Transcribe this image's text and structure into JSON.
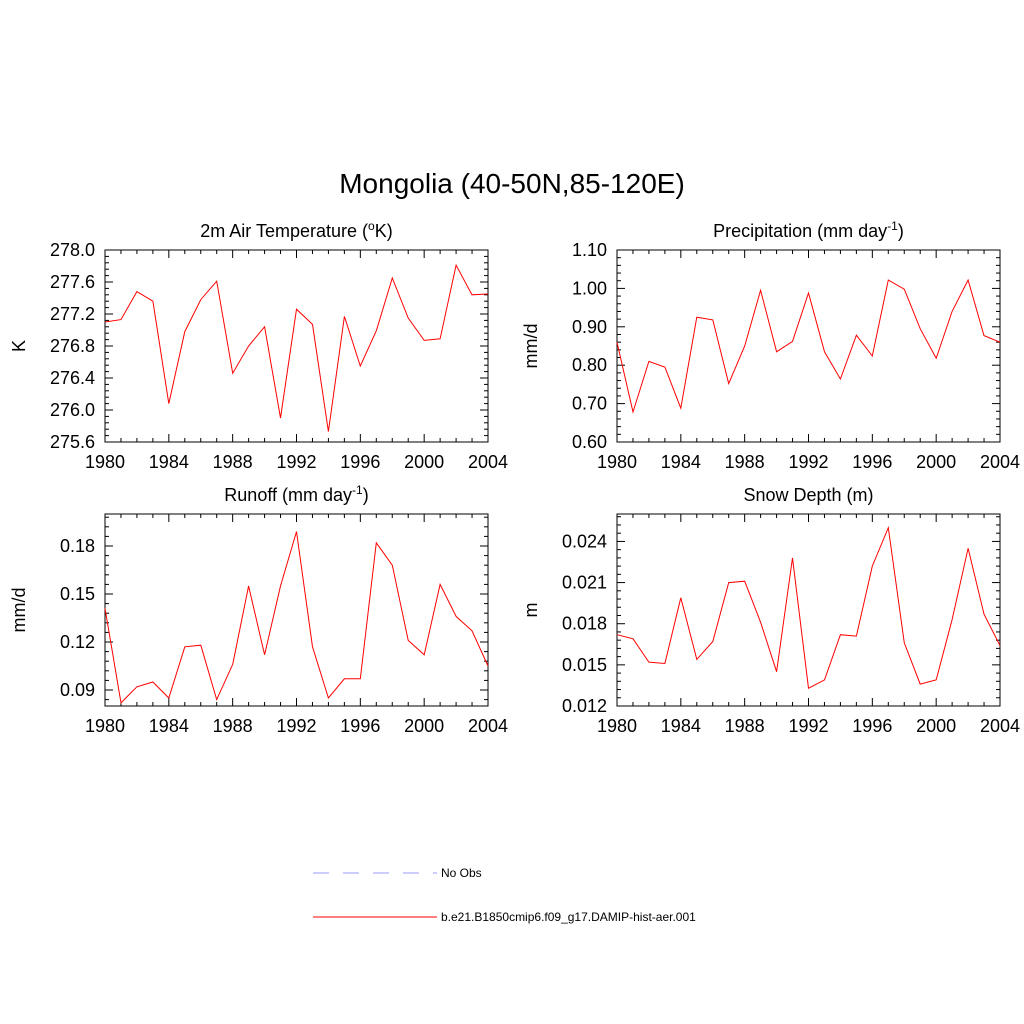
{
  "title": "Mongolia (40-50N,85-120E)",
  "legend": [
    {
      "label": "No Obs",
      "color": "#9999ff",
      "dash": true
    },
    {
      "label": "b.e21.B1850cmip6.f09_g17.DAMIP-hist-aer.001",
      "color": "#ff0000",
      "dash": false
    }
  ],
  "chart_data": [
    {
      "type": "line",
      "title_main": "2m Air Temperature (",
      "title_sup": "o",
      "title_tail": "K)",
      "title_sup_before": true,
      "ylabel": "K",
      "xlim": [
        1980,
        2004
      ],
      "ylim": [
        275.6,
        278.0
      ],
      "xticks": [
        "1980",
        "1984",
        "1988",
        "1992",
        "1996",
        "2000",
        "2004"
      ],
      "yticks": [
        "275.6",
        "276.0",
        "276.4",
        "276.8",
        "277.2",
        "277.6",
        "278.0"
      ],
      "x": [
        1980,
        1981,
        1982,
        1983,
        1984,
        1985,
        1986,
        1987,
        1988,
        1989,
        1990,
        1991,
        1992,
        1993,
        1994,
        1995,
        1996,
        1997,
        1998,
        1999,
        2000,
        2001,
        2002,
        2003,
        2004
      ],
      "series": [
        {
          "name": "b.e21.B1850cmip6.f09_g17.DAMIP-hist-aer.001",
          "color": "#ff0000",
          "values": [
            277.1,
            277.13,
            277.48,
            277.36,
            276.08,
            276.98,
            277.38,
            277.61,
            276.46,
            276.8,
            277.04,
            275.9,
            277.26,
            277.07,
            275.73,
            277.17,
            276.55,
            276.99,
            277.65,
            277.15,
            276.87,
            276.89,
            277.81,
            277.44,
            277.45
          ]
        }
      ]
    },
    {
      "type": "line",
      "title_main": "Precipitation (mm day",
      "title_sup": "-1",
      "title_tail": ")",
      "title_sup_before": false,
      "ylabel": "mm/d",
      "xlim": [
        1980,
        2004
      ],
      "ylim": [
        0.6,
        1.1
      ],
      "xticks": [
        "1980",
        "1984",
        "1988",
        "1992",
        "1996",
        "2000",
        "2004"
      ],
      "yticks": [
        "0.60",
        "0.70",
        "0.80",
        "0.90",
        "1.00",
        "1.10"
      ],
      "x": [
        1980,
        1981,
        1982,
        1983,
        1984,
        1985,
        1986,
        1987,
        1988,
        1989,
        1990,
        1991,
        1992,
        1993,
        1994,
        1995,
        1996,
        1997,
        1998,
        1999,
        2000,
        2001,
        2002,
        2003,
        2004
      ],
      "series": [
        {
          "name": "b.e21.B1850cmip6.f09_g17.DAMIP-hist-aer.001",
          "color": "#ff0000",
          "values": [
            0.86,
            0.678,
            0.81,
            0.795,
            0.688,
            0.925,
            0.918,
            0.752,
            0.85,
            0.995,
            0.835,
            0.862,
            0.988,
            0.835,
            0.764,
            0.878,
            0.824,
            1.022,
            0.998,
            0.895,
            0.818,
            0.94,
            1.022,
            0.877,
            0.86
          ]
        }
      ]
    },
    {
      "type": "line",
      "title_main": "Runoff (mm day",
      "title_sup": "-1",
      "title_tail": ")",
      "title_sup_before": false,
      "ylabel": "mm/d",
      "xlim": [
        1980,
        2004
      ],
      "ylim": [
        0.08,
        0.2
      ],
      "xticks": [
        "1980",
        "1984",
        "1988",
        "1992",
        "1996",
        "2000",
        "2004"
      ],
      "ytick_values": [
        0.09,
        0.12,
        0.15,
        0.18
      ],
      "yticks": [
        "0.09",
        "0.12",
        "0.15",
        "0.18"
      ],
      "x": [
        1980,
        1981,
        1982,
        1983,
        1984,
        1985,
        1986,
        1987,
        1988,
        1989,
        1990,
        1991,
        1992,
        1993,
        1994,
        1995,
        1996,
        1997,
        1998,
        1999,
        2000,
        2001,
        2002,
        2003,
        2004
      ],
      "series": [
        {
          "name": "b.e21.B1850cmip6.f09_g17.DAMIP-hist-aer.001",
          "color": "#ff0000",
          "values": [
            0.141,
            0.082,
            0.092,
            0.095,
            0.085,
            0.117,
            0.118,
            0.084,
            0.106,
            0.155,
            0.112,
            0.155,
            0.189,
            0.117,
            0.085,
            0.097,
            0.097,
            0.182,
            0.168,
            0.121,
            0.112,
            0.156,
            0.136,
            0.127,
            0.105
          ]
        }
      ]
    },
    {
      "type": "line",
      "title_main": "Snow Depth (m)",
      "title_sup": "",
      "title_tail": "",
      "title_sup_before": false,
      "ylabel": "m",
      "xlim": [
        1980,
        2004
      ],
      "ylim": [
        0.012,
        0.026
      ],
      "xticks": [
        "1980",
        "1984",
        "1988",
        "1992",
        "1996",
        "2000",
        "2004"
      ],
      "ytick_values": [
        0.012,
        0.015,
        0.018,
        0.021,
        0.024
      ],
      "yticks": [
        "0.012",
        "0.015",
        "0.018",
        "0.021",
        "0.024"
      ],
      "x": [
        1980,
        1981,
        1982,
        1983,
        1984,
        1985,
        1986,
        1987,
        1988,
        1989,
        1990,
        1991,
        1992,
        1993,
        1994,
        1995,
        1996,
        1997,
        1998,
        1999,
        2000,
        2001,
        2002,
        2003,
        2004
      ],
      "series": [
        {
          "name": "b.e21.B1850cmip6.f09_g17.DAMIP-hist-aer.001",
          "color": "#ff0000",
          "values": [
            0.0172,
            0.0169,
            0.0152,
            0.0151,
            0.0199,
            0.0154,
            0.0167,
            0.021,
            0.0211,
            0.0181,
            0.0145,
            0.0228,
            0.0133,
            0.0139,
            0.0172,
            0.0171,
            0.0222,
            0.025,
            0.0166,
            0.0136,
            0.0139,
            0.0183,
            0.0235,
            0.0187,
            0.0164
          ]
        }
      ]
    }
  ]
}
